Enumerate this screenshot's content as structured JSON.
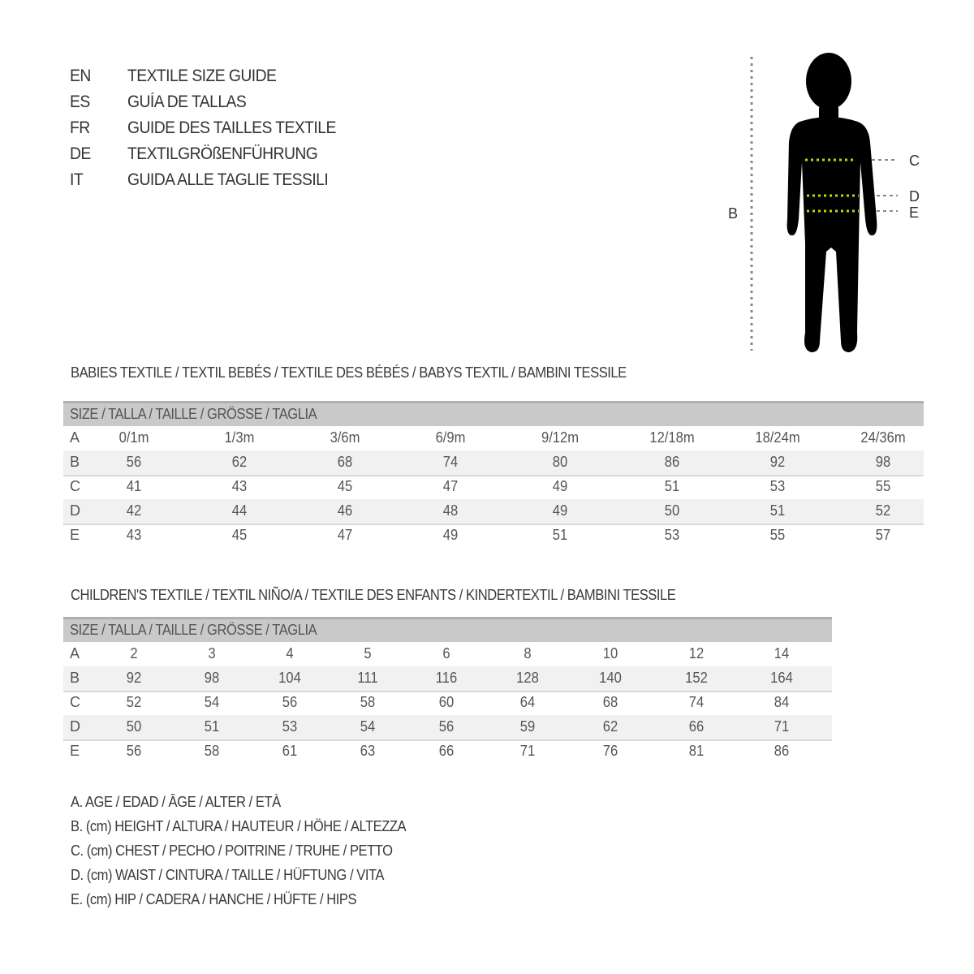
{
  "title_lines": [
    {
      "lang": "EN",
      "text": "TEXTILE SIZE GUIDE"
    },
    {
      "lang": "ES",
      "text": "GUÍA DE TALLAS"
    },
    {
      "lang": "FR",
      "text": "GUIDE DES TAILLES TEXTILE"
    },
    {
      "lang": "DE",
      "text": "TEXTILGRÖßENFÜHRUNG"
    },
    {
      "lang": "IT",
      "text": "GUIDA ALLE TAGLIE TESSILI"
    }
  ],
  "figure": {
    "labels": {
      "B": "B",
      "C": "C",
      "D": "D",
      "E": "E"
    },
    "colors": {
      "silhouette": "#000000",
      "measure_lines": "#c8d400",
      "guides": "#888888"
    }
  },
  "babies": {
    "title": "BABIES TEXTILE / TEXTIL BEBÉS / TEXTILE DES BÉBÉS / BABYS TEXTIL  / BAMBINI TESSILE",
    "header": "SIZE / TALLA / TAILLE / GRÖSSE / TAGLIA",
    "rows": [
      {
        "label": "A",
        "values": [
          "0/1m",
          "1/3m",
          "3/6m",
          "6/9m",
          "9/12m",
          "12/18m",
          "18/24m",
          "24/36m"
        ]
      },
      {
        "label": "B",
        "values": [
          "56",
          "62",
          "68",
          "74",
          "80",
          "86",
          "92",
          "98"
        ]
      },
      {
        "label": "C",
        "values": [
          "41",
          "43",
          "45",
          "47",
          "49",
          "51",
          "53",
          "55"
        ]
      },
      {
        "label": "D",
        "values": [
          "42",
          "44",
          "46",
          "48",
          "49",
          "50",
          "51",
          "52"
        ]
      },
      {
        "label": "E",
        "values": [
          "43",
          "45",
          "47",
          "49",
          "51",
          "53",
          "55",
          "57"
        ]
      }
    ]
  },
  "children": {
    "title": "CHILDREN'S TEXTILE / TEXTIL NIÑO/A / TEXTILE DES ENFANTS / KINDERTEXTIL / BAMBINI TESSILE",
    "header": "SIZE / TALLA / TAILLE / GRÖSSE / TAGLIA",
    "rows": [
      {
        "label": "A",
        "values": [
          "2",
          "3",
          "4",
          "5",
          "6",
          "8",
          "10",
          "12",
          "14"
        ]
      },
      {
        "label": "B",
        "values": [
          "92",
          "98",
          "104",
          "111",
          "116",
          "128",
          "140",
          "152",
          "164"
        ]
      },
      {
        "label": "C",
        "values": [
          "52",
          "54",
          "56",
          "58",
          "60",
          "64",
          "68",
          "74",
          "84"
        ]
      },
      {
        "label": "D",
        "values": [
          "50",
          "51",
          "53",
          "54",
          "56",
          "59",
          "62",
          "66",
          "71"
        ]
      },
      {
        "label": "E",
        "values": [
          "56",
          "58",
          "61",
          "63",
          "66",
          "71",
          "76",
          "81",
          "86"
        ]
      }
    ]
  },
  "legend": [
    "A. AGE / EDAD / ÂGE / ALTER / ETÀ",
    "B. (cm) HEIGHT / ALTURA / HAUTEUR / HÖHE / ALTEZZA",
    "C. (cm) CHEST / PECHO / POITRINE / TRUHE / PETTO",
    "D. (cm) WAIST / CINTURA / TAILLE / HÜFTUNG / VITA",
    "E. (cm) HIP / CADERA / HANCHE / HÜFTE / HIPS"
  ]
}
